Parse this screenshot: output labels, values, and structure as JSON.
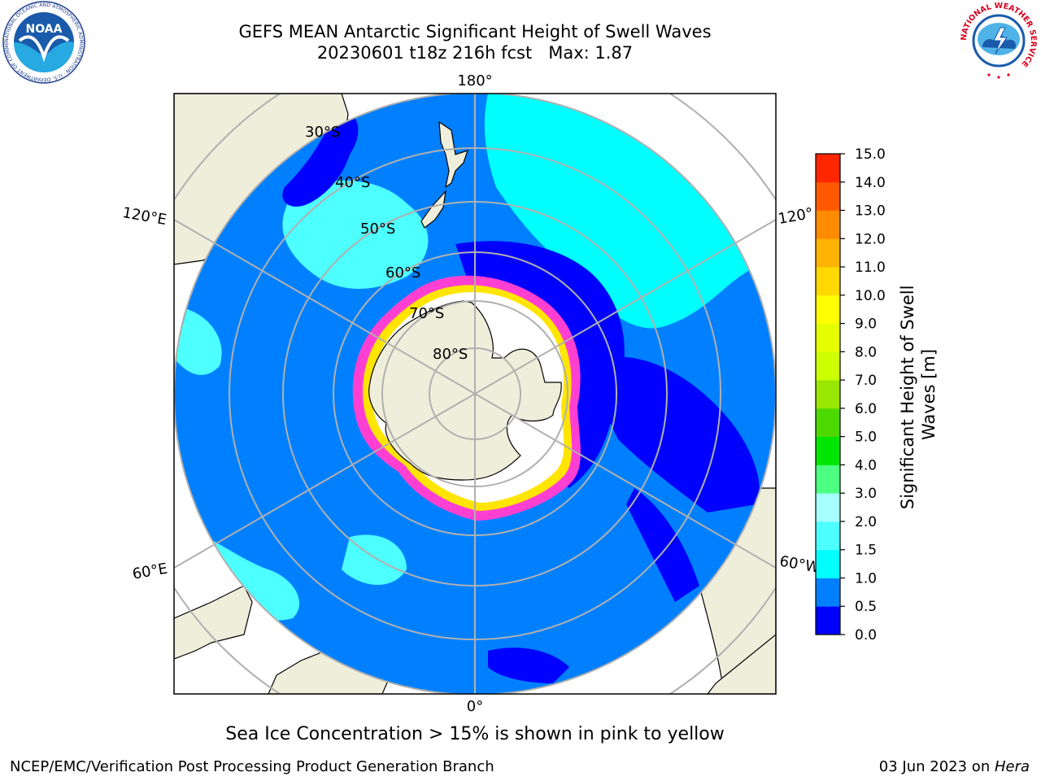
{
  "title": {
    "line1": "GEFS MEAN Antarctic Significant Height of Swell Waves",
    "line2": "20230601 t18z 216h fcst   Max: 1.87"
  },
  "map_labels": {
    "lon_top": "180°",
    "lon_bottom": "0°",
    "lon_120e": "120°E",
    "lon_120w": "120°",
    "lon_60e": "60°E",
    "lon_60w": "60°W",
    "lat_30": "30°S",
    "lat_40": "40°S",
    "lat_50": "50°S",
    "lat_60": "60°S",
    "lat_70": "70°S",
    "lat_80": "80°S"
  },
  "colorbar": {
    "label_line1": "Significant Height of Swell",
    "label_line2": "Waves [m]",
    "ticks": [
      "0.0",
      "0.5",
      "1.0",
      "1.5",
      "2.0",
      "3.0",
      "4.0",
      "5.0",
      "6.0",
      "7.0",
      "8.0",
      "9.0",
      "10.0",
      "11.0",
      "12.0",
      "13.0",
      "14.0",
      "15.0"
    ],
    "colors": [
      "#0000ff",
      "#0080ff",
      "#00ffff",
      "#4dffff",
      "#a6ffff",
      "#4dff80",
      "#00e600",
      "#4cd900",
      "#99e600",
      "#ccff00",
      "#e6ff00",
      "#ffff00",
      "#ffd900",
      "#ffb300",
      "#ff8c00",
      "#ff5900",
      "#ff2600"
    ]
  },
  "note": "Sea Ice Concentration > 15% is shown in pink to yellow",
  "footer": {
    "left": "NCEP/EMC/Verification Post Processing Product Generation Branch",
    "right_prefix": "03 Jun 2023 on ",
    "right_machine": "Hera"
  },
  "logos": {
    "noaa_text": "NOAA",
    "noaa_ring": "NATIONAL OCEANIC AND ATMOSPHERIC ADMINISTRATION · U.S. DEPARTMENT OF COMMERCE",
    "nws_ring": "NATIONAL WEATHER SERVICE"
  }
}
